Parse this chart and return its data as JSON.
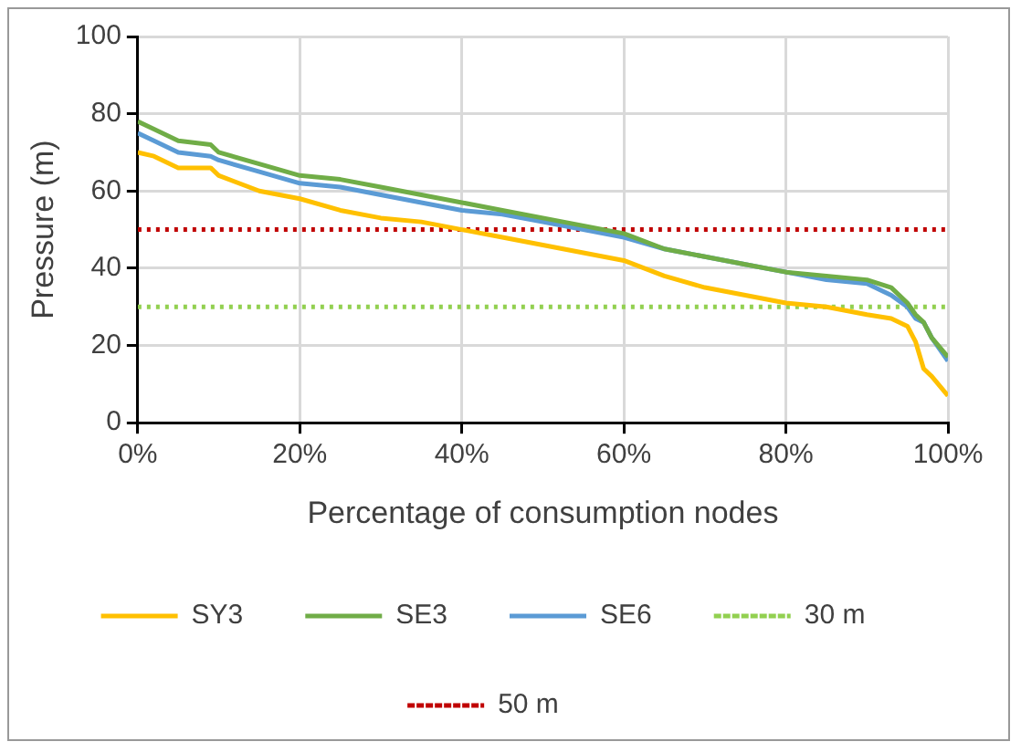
{
  "chart_data": {
    "type": "line",
    "xlabel": "Percentage of consumption nodes",
    "ylabel": "Pressure (m)",
    "xlim": [
      0,
      100
    ],
    "xticks": [
      {
        "value": 0,
        "label": "0%"
      },
      {
        "value": 20,
        "label": "20%"
      },
      {
        "value": 40,
        "label": "40%"
      },
      {
        "value": 60,
        "label": "60%"
      },
      {
        "value": 80,
        "label": "80%"
      },
      {
        "value": 100,
        "label": "100%"
      }
    ],
    "ylim": [
      0,
      100
    ],
    "yticks": [
      0,
      20,
      40,
      60,
      80,
      100
    ],
    "grid": true,
    "legend": "bottom",
    "marker": "none",
    "line_style": "solid",
    "x": [
      0,
      2,
      5,
      9,
      10,
      15,
      20,
      25,
      30,
      35,
      40,
      45,
      50,
      55,
      60,
      65,
      70,
      75,
      80,
      85,
      90,
      93,
      95,
      96,
      97,
      98,
      100
    ],
    "series": [
      {
        "name": "SY3",
        "color": "#ffc000",
        "values": [
          70,
          69,
          66,
          66,
          64,
          60,
          58,
          55,
          53,
          52,
          50,
          48,
          46,
          44,
          42,
          38,
          35,
          33,
          31,
          30,
          28,
          27,
          25,
          21,
          14,
          12,
          7
        ]
      },
      {
        "name": "SE3",
        "color": "#70ad47",
        "values": [
          78,
          76,
          73,
          72,
          70,
          67,
          64,
          63,
          61,
          59,
          57,
          55,
          53,
          51,
          49,
          45,
          43,
          41,
          39,
          38,
          37,
          35,
          31,
          28,
          26,
          22,
          17
        ]
      },
      {
        "name": "SE6",
        "color": "#5b9bd5",
        "values": [
          75,
          73,
          70,
          69,
          68,
          65,
          62,
          61,
          59,
          57,
          55,
          54,
          52,
          50,
          48,
          45,
          43,
          41,
          39,
          37,
          36,
          33,
          30,
          27,
          26,
          22,
          16
        ]
      }
    ],
    "ref_lines": [
      {
        "axis": "y",
        "value": 30,
        "label": "30 m",
        "color": "#92d050",
        "line_style": "dotted"
      },
      {
        "axis": "y",
        "value": 50,
        "label": "50 m",
        "color": "#c00000",
        "line_style": "dotted"
      }
    ]
  }
}
